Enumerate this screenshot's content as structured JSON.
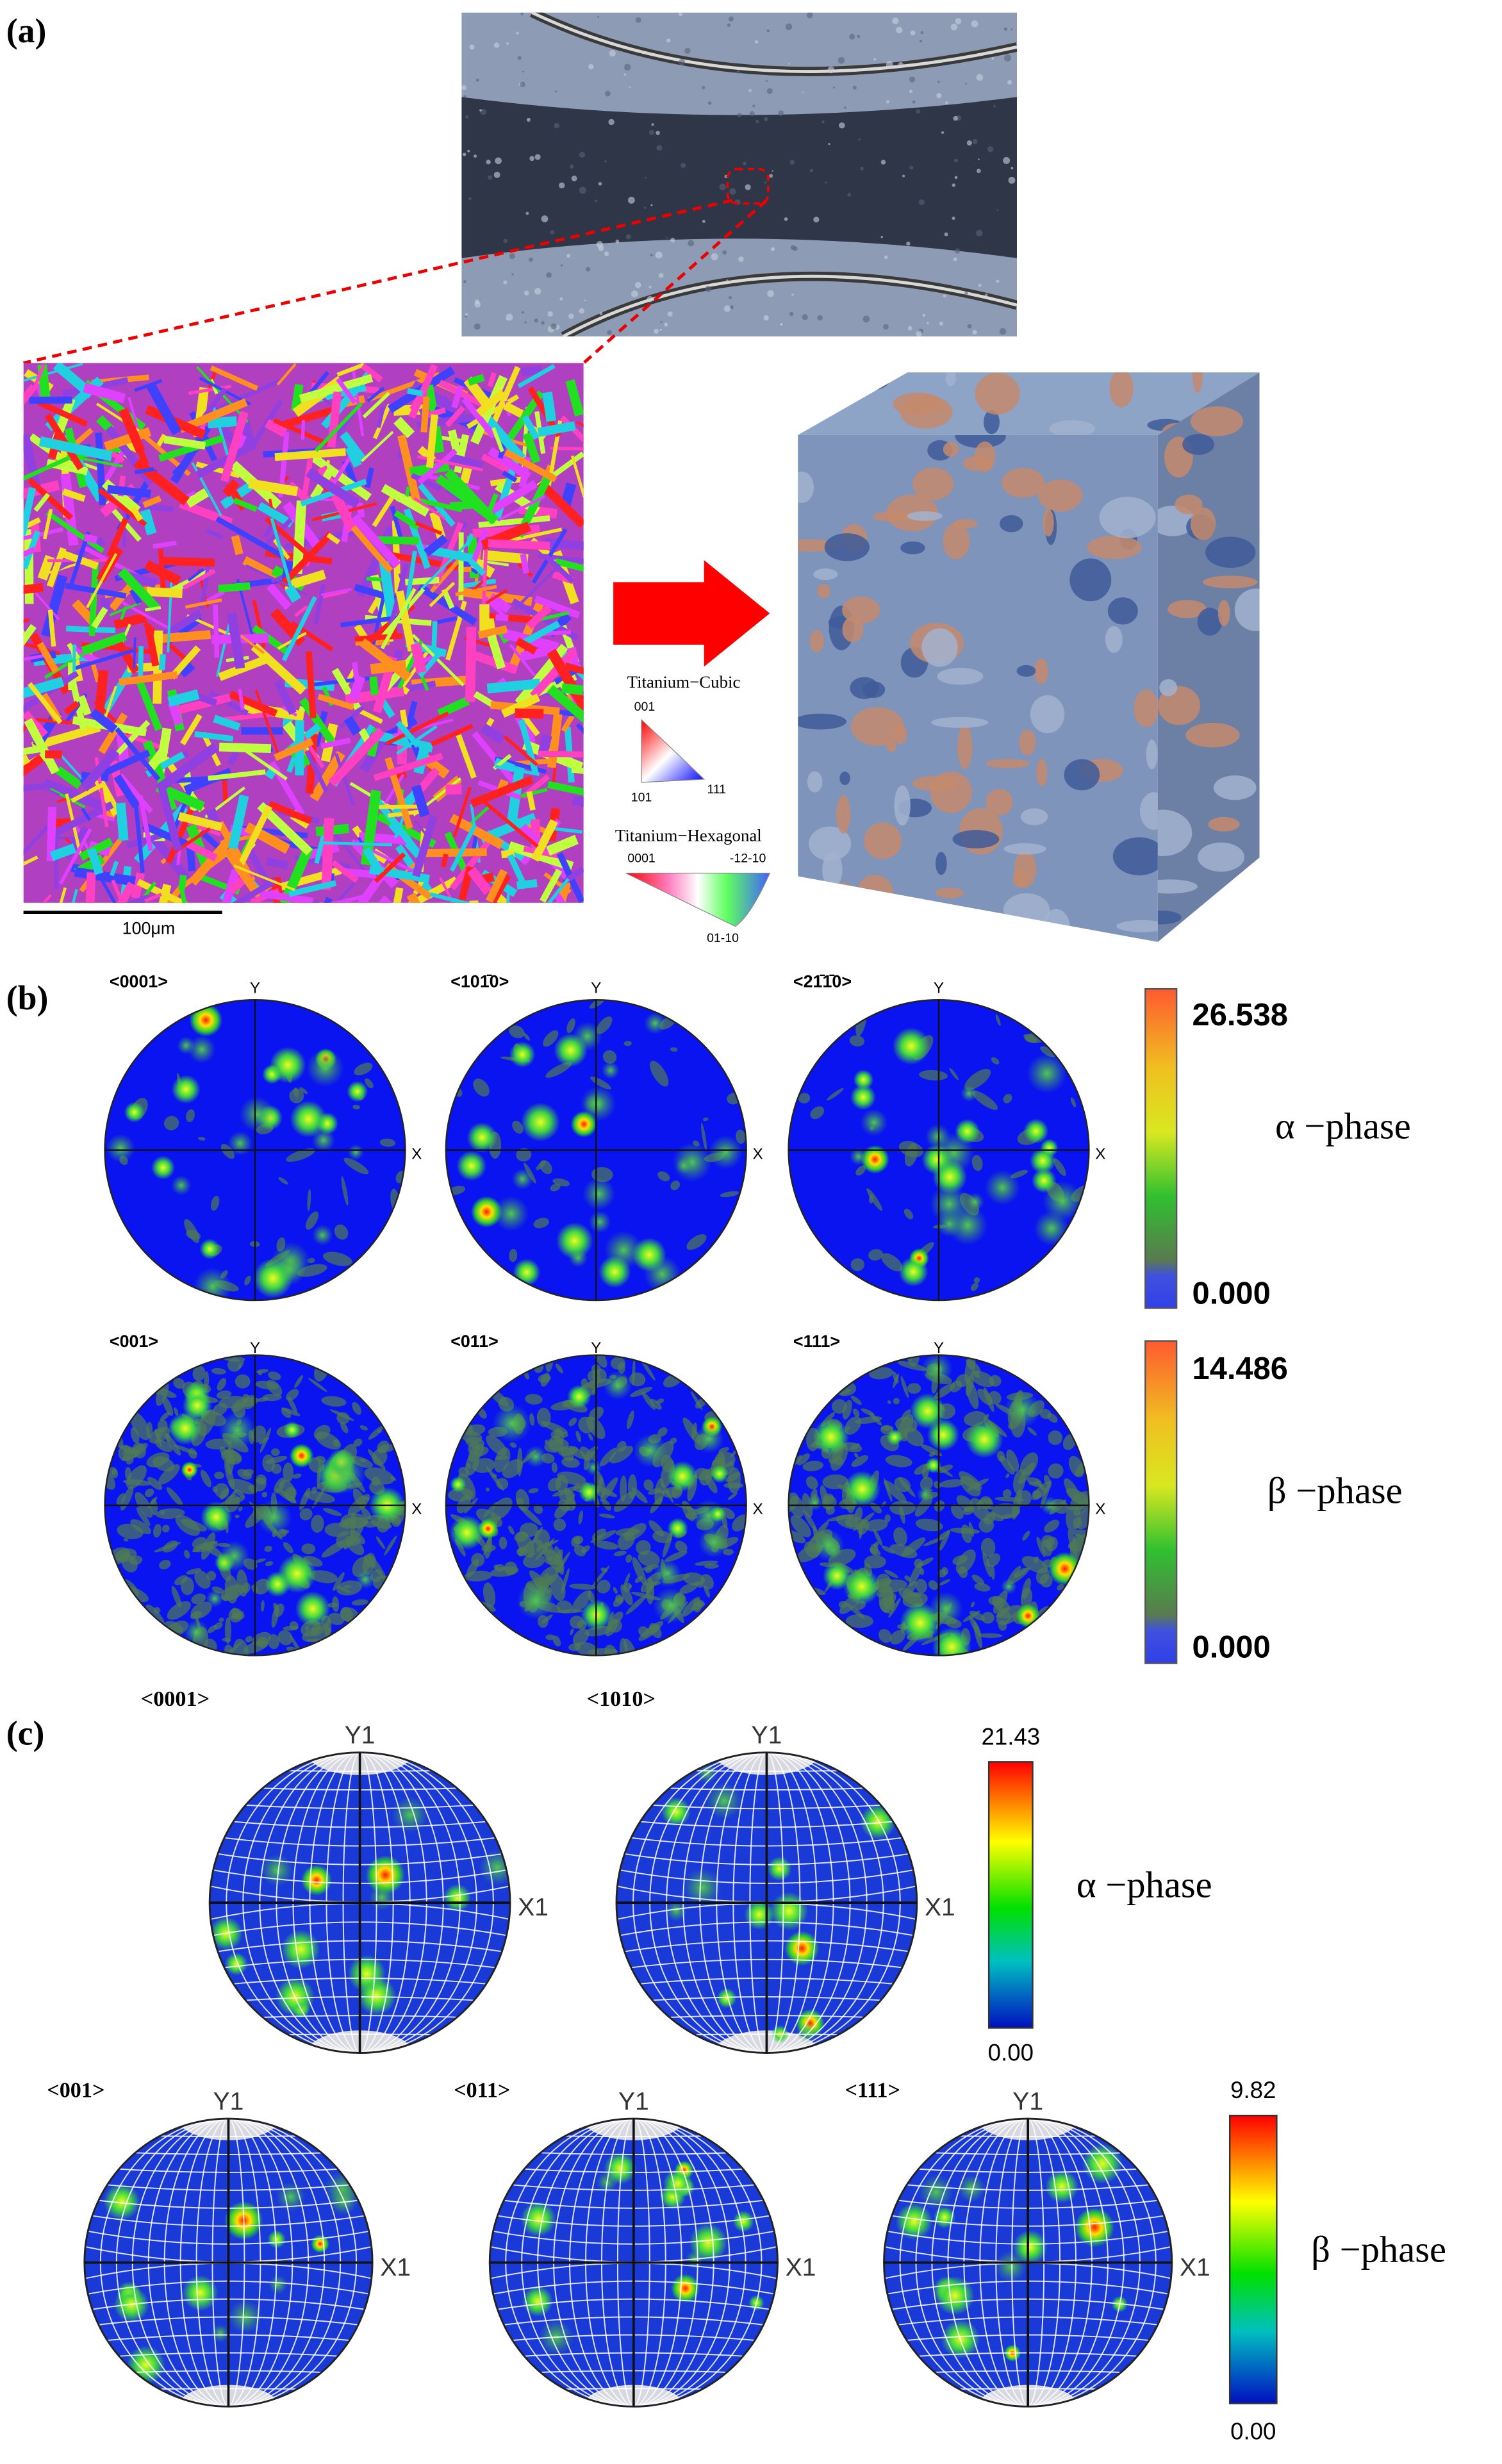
{
  "panels": {
    "a": {
      "label": "(a)",
      "scale_bar": "100μm",
      "legend": {
        "cubic": {
          "title": "Titanium−Cubic",
          "corners": [
            "001",
            "101",
            "111"
          ]
        },
        "hexagonal": {
          "title": "Titanium−Hexagonal",
          "corners": [
            "0001",
            "-12-10",
            "01-10"
          ]
        }
      }
    },
    "b": {
      "label": "(b)",
      "axes": {
        "y": "Y",
        "x": "X"
      },
      "rows": [
        {
          "figures": [
            "<0001>",
            "<101̄0>",
            "<21̄1̄0>"
          ],
          "colorbar": {
            "max": "26.538",
            "min": "0.000"
          },
          "phase": "α −phase"
        },
        {
          "figures": [
            "<001>",
            "<011>",
            "<111>"
          ],
          "colorbar": {
            "max": "14.486",
            "min": "0.000"
          },
          "phase": "β −phase"
        }
      ]
    },
    "c": {
      "label": "(c)",
      "axes": {
        "y": "Y1",
        "x": "X1"
      },
      "rows": [
        {
          "figures": [
            "<0001>",
            "<1010>"
          ],
          "colorbar": {
            "max": "21.43",
            "min": "0.00"
          },
          "phase": "α −phase"
        },
        {
          "figures": [
            "<001>",
            "<011>",
            "<111>"
          ],
          "colorbar": {
            "max": "9.82",
            "min": "0.00"
          },
          "phase": "β −phase"
        }
      ]
    }
  }
}
